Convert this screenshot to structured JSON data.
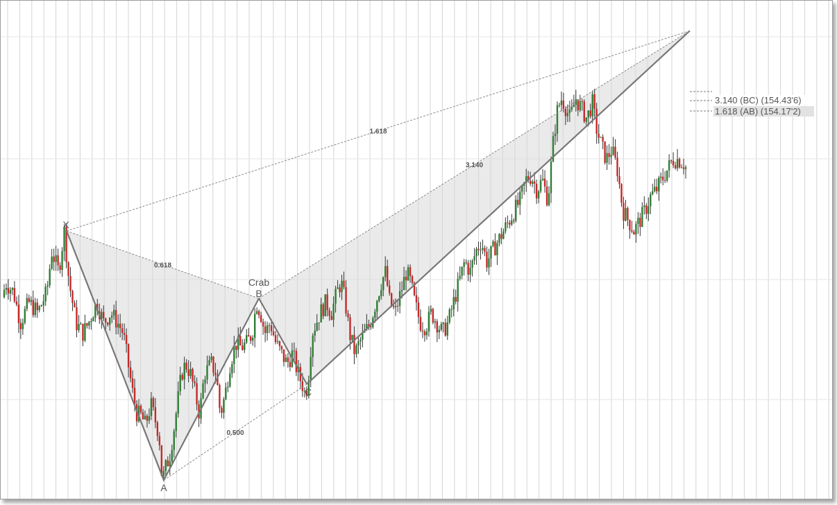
{
  "chart_data": {
    "type": "candlestick",
    "title": "",
    "grid": true,
    "legend": "none",
    "colors": {
      "up": "#2e7d32",
      "down": "#c62828",
      "wick": "#333333",
      "pattern_line": "#777777",
      "pattern_fill": "#d9d9d9",
      "grid": "#d4d4d4"
    },
    "ylim": [
      152.2,
      154.55
    ],
    "x_count": 330,
    "candle_path": [
      [
        0,
        153.0
      ],
      [
        8,
        153.2
      ],
      [
        20,
        153.15
      ],
      [
        30,
        153.0
      ],
      [
        42,
        153.1
      ],
      [
        55,
        153.05
      ],
      [
        68,
        153.15
      ],
      [
        75,
        153.35
      ],
      [
        85,
        153.25
      ],
      [
        93,
        153.45
      ],
      [
        100,
        153.2
      ],
      [
        110,
        153.0
      ],
      [
        120,
        152.95
      ],
      [
        128,
        153.0
      ],
      [
        140,
        153.1
      ],
      [
        150,
        153.0
      ],
      [
        160,
        153.05
      ],
      [
        170,
        153.0
      ],
      [
        178,
        152.95
      ],
      [
        185,
        152.8
      ],
      [
        192,
        152.65
      ],
      [
        198,
        152.55
      ],
      [
        203,
        152.55
      ],
      [
        210,
        152.5
      ],
      [
        218,
        152.6
      ],
      [
        226,
        152.5
      ],
      [
        230,
        152.45
      ],
      [
        232,
        152.3
      ],
      [
        234,
        152.25
      ],
      [
        236,
        152.25
      ],
      [
        240,
        152.3
      ],
      [
        245,
        152.35
      ],
      [
        252,
        152.5
      ],
      [
        258,
        152.65
      ],
      [
        262,
        152.75
      ],
      [
        268,
        152.8
      ],
      [
        275,
        152.75
      ],
      [
        282,
        152.65
      ],
      [
        288,
        152.55
      ],
      [
        295,
        152.75
      ],
      [
        305,
        152.8
      ],
      [
        312,
        152.75
      ],
      [
        318,
        152.55
      ],
      [
        325,
        152.65
      ],
      [
        332,
        152.8
      ],
      [
        340,
        152.9
      ],
      [
        348,
        152.88
      ],
      [
        356,
        152.9
      ],
      [
        364,
        152.95
      ],
      [
        370,
        153.1
      ],
      [
        376,
        153.05
      ],
      [
        382,
        152.95
      ],
      [
        390,
        153.0
      ],
      [
        398,
        152.9
      ],
      [
        406,
        152.85
      ],
      [
        414,
        152.8
      ],
      [
        422,
        152.85
      ],
      [
        430,
        152.75
      ],
      [
        436,
        152.7
      ],
      [
        440,
        152.65
      ],
      [
        444,
        152.7
      ],
      [
        450,
        152.95
      ],
      [
        456,
        153.0
      ],
      [
        462,
        153.05
      ],
      [
        470,
        153.1
      ],
      [
        478,
        153.05
      ],
      [
        486,
        153.15
      ],
      [
        492,
        153.2
      ],
      [
        498,
        153.1
      ],
      [
        504,
        152.95
      ],
      [
        512,
        152.85
      ],
      [
        518,
        152.9
      ],
      [
        526,
        152.95
      ],
      [
        534,
        153.0
      ],
      [
        542,
        153.1
      ],
      [
        550,
        153.2
      ],
      [
        556,
        153.25
      ],
      [
        562,
        153.1
      ],
      [
        570,
        153.05
      ],
      [
        578,
        153.15
      ],
      [
        586,
        153.25
      ],
      [
        592,
        153.2
      ],
      [
        598,
        153.1
      ],
      [
        606,
        153.0
      ],
      [
        614,
        152.98
      ],
      [
        622,
        153.05
      ],
      [
        630,
        153.0
      ],
      [
        638,
        152.95
      ],
      [
        646,
        153.0
      ],
      [
        654,
        153.1
      ],
      [
        662,
        153.2
      ],
      [
        670,
        153.3
      ],
      [
        678,
        153.25
      ],
      [
        686,
        153.35
      ],
      [
        694,
        153.4
      ],
      [
        702,
        153.3
      ],
      [
        710,
        153.35
      ],
      [
        718,
        153.4
      ],
      [
        726,
        153.45
      ],
      [
        734,
        153.5
      ],
      [
        742,
        153.55
      ],
      [
        750,
        153.6
      ],
      [
        758,
        153.7
      ],
      [
        766,
        153.72
      ],
      [
        774,
        153.65
      ],
      [
        782,
        153.7
      ],
      [
        790,
        153.6
      ],
      [
        798,
        153.9
      ],
      [
        804,
        154.05
      ],
      [
        810,
        154.1
      ],
      [
        816,
        154.05
      ],
      [
        822,
        154.0
      ],
      [
        830,
        154.1
      ],
      [
        838,
        154.05
      ],
      [
        846,
        154.0
      ],
      [
        854,
        154.08
      ],
      [
        860,
        153.95
      ],
      [
        866,
        153.88
      ],
      [
        874,
        153.8
      ],
      [
        882,
        153.85
      ],
      [
        890,
        153.75
      ],
      [
        898,
        153.55
      ],
      [
        906,
        153.5
      ],
      [
        914,
        153.45
      ],
      [
        922,
        153.5
      ],
      [
        930,
        153.55
      ],
      [
        938,
        153.62
      ],
      [
        946,
        153.65
      ],
      [
        954,
        153.7
      ],
      [
        962,
        153.75
      ],
      [
        970,
        153.8
      ],
      [
        978,
        153.8
      ],
      [
        986,
        153.78
      ],
      [
        990,
        153.75
      ]
    ],
    "points": {
      "X": 153.45,
      "A": 152.23,
      "B": 153.12,
      "C": 152.7,
      "D": 154.43
    },
    "labels": {
      "x": "X",
      "a": "A",
      "b": "B",
      "c": "C",
      "pattern": "Crab",
      "r_xab": "0.618",
      "r_abc": "0.500",
      "r_bcd": "3.140",
      "r_xad": "1.618"
    },
    "side_labels": [
      "3.140 (BC) (154.43'6)",
      "1.618 (AB) (154.17'2)"
    ]
  }
}
